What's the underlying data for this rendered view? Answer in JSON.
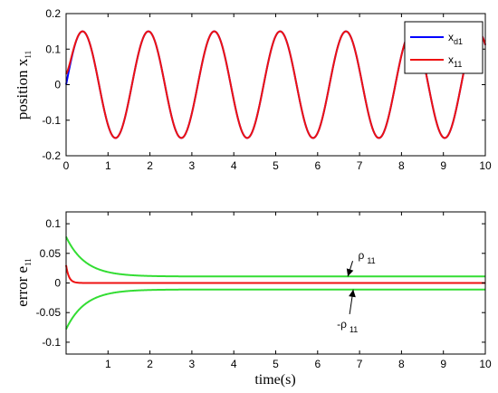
{
  "chart_data": [
    {
      "type": "line",
      "ylabel": "position x",
      "ylabel_sub": "11",
      "xlim": [
        0,
        10
      ],
      "ylim": [
        -0.2,
        0.2
      ],
      "xticks": [
        0,
        1,
        2,
        3,
        4,
        5,
        6,
        7,
        8,
        9,
        10
      ],
      "yticks": [
        -0.2,
        -0.1,
        0,
        0.1,
        0.2
      ],
      "ytick_labels": [
        "-0.2",
        "-0.1",
        "0",
        "0.1",
        "0.2"
      ],
      "legend": {
        "position": "top-right"
      },
      "series": [
        {
          "name": "x",
          "name_sub": "d1",
          "color": "#0000ff",
          "function": "0.15*sin(4*t)",
          "x": [
            0,
            0.1,
            0.2,
            0.3,
            0.39,
            0.5,
            0.75,
            1.0,
            1.18,
            1.5,
            1.96,
            2.5,
            2.75,
            3.53,
            4.32,
            5.1,
            5.89,
            6.68,
            7.46,
            8.25,
            9.03,
            9.82,
            10
          ],
          "y": [
            0,
            0.058,
            0.108,
            0.14,
            0.15,
            0.136,
            0.021,
            -0.114,
            -0.15,
            -0.042,
            0.15,
            -0.082,
            -0.15,
            0.15,
            -0.15,
            0.15,
            -0.15,
            0.15,
            -0.15,
            0.15,
            -0.15,
            0.15,
            0.112
          ]
        },
        {
          "name": "x",
          "name_sub": "11",
          "color": "#ee1111",
          "function": "0.15*sin(4*t) + 0.03*exp(-15*t)",
          "x": [
            0,
            0.05,
            0.1,
            0.2,
            0.39,
            1.18,
            1.96,
            2.75,
            3.53,
            4.32,
            5.1,
            5.89,
            6.68,
            7.46,
            8.25,
            9.03,
            9.82,
            10
          ],
          "y": [
            0.03,
            0.044,
            0.065,
            0.11,
            0.15,
            -0.15,
            0.15,
            -0.15,
            0.15,
            -0.15,
            0.15,
            -0.15,
            0.15,
            -0.15,
            0.15,
            -0.15,
            0.15,
            0.112
          ]
        }
      ]
    },
    {
      "type": "line",
      "xlabel": "time(s)",
      "ylabel": "error e",
      "ylabel_sub": "11",
      "xlim": [
        0,
        10
      ],
      "ylim": [
        -0.12,
        0.12
      ],
      "xticks": [
        1,
        2,
        3,
        4,
        5,
        6,
        7,
        8,
        9,
        10
      ],
      "yticks": [
        -0.1,
        -0.05,
        0,
        0.05,
        0.1
      ],
      "ytick_labels": [
        "-0.1",
        "-0.05",
        "0",
        "0.05",
        "0.1"
      ],
      "series": [
        {
          "name": "ρ",
          "name_sub": "11",
          "color": "#33dd33",
          "function": "0.067*exp(-2.2*t) + 0.011",
          "x": [
            0,
            0.5,
            1,
            1.5,
            2,
            3,
            5,
            10
          ],
          "y": [
            0.078,
            0.033,
            0.018,
            0.013,
            0.012,
            0.011,
            0.011,
            0.011
          ]
        },
        {
          "name": "-ρ",
          "name_sub": "11",
          "color": "#33dd33",
          "function": "-(0.067*exp(-2.2*t) + 0.011)",
          "x": [
            0,
            0.5,
            1,
            1.5,
            2,
            3,
            5,
            10
          ],
          "y": [
            -0.078,
            -0.033,
            -0.018,
            -0.013,
            -0.012,
            -0.011,
            -0.011,
            -0.011
          ]
        },
        {
          "name": "e11",
          "color": "#ee1111",
          "function": "0.03*exp(-15*t)",
          "x": [
            0,
            0.05,
            0.1,
            0.2,
            0.5,
            10
          ],
          "y": [
            0.03,
            0.014,
            0.007,
            0.0015,
            0.0,
            0.0
          ]
        }
      ],
      "annotations": [
        {
          "label": "ρ",
          "label_sub": "11",
          "x": 6.75,
          "y": 0.028,
          "arrow_to": [
            6.72,
            0.011
          ]
        },
        {
          "label": "-ρ",
          "label_sub": "11",
          "x": 6.72,
          "y": -0.045,
          "arrow_to": [
            6.85,
            -0.011
          ]
        }
      ]
    }
  ]
}
